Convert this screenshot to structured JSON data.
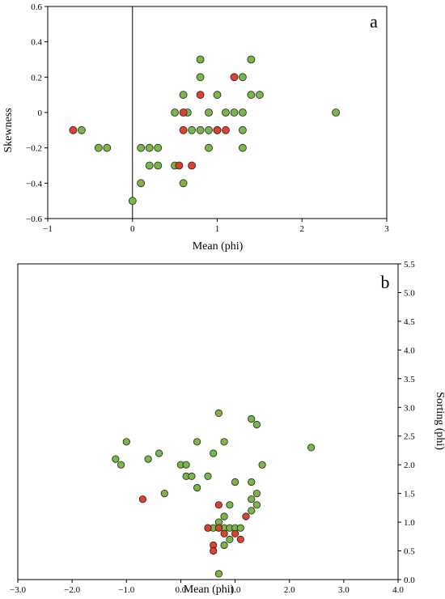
{
  "colors": {
    "green": "#7ab648",
    "red": "#e0412f",
    "stroke": "#1f1f1f"
  },
  "chart_data": [
    {
      "type": "scatter",
      "panel_label": "a",
      "xlabel": "Mean (phi)",
      "ylabel": "Skewness",
      "xlim": [
        -1,
        3
      ],
      "ylim": [
        -0.6,
        0.6
      ],
      "x_ticks": [
        -1,
        0,
        1,
        2,
        3
      ],
      "y_ticks": [
        -0.6,
        -0.4,
        -0.2,
        0,
        0.2,
        0.4,
        0.6
      ],
      "x_tick_labels": [
        "−1",
        "0",
        "1",
        "2",
        "3"
      ],
      "y_tick_labels": [
        "−0.6",
        "−0.4",
        "−0.2",
        "0",
        "0.2",
        "0.4",
        "0.6"
      ],
      "grid": false,
      "series": [
        {
          "color": "green",
          "points": [
            [
              -0.6,
              -0.1
            ],
            [
              -0.4,
              -0.2
            ],
            [
              -0.3,
              -0.2
            ],
            [
              0.0,
              -0.5
            ],
            [
              0.1,
              -0.4
            ],
            [
              0.1,
              -0.2
            ],
            [
              0.2,
              -0.2
            ],
            [
              0.2,
              -0.3
            ],
            [
              0.3,
              -0.2
            ],
            [
              0.3,
              -0.3
            ],
            [
              0.5,
              0.0
            ],
            [
              0.5,
              -0.3
            ],
            [
              0.6,
              0.1
            ],
            [
              0.6,
              -0.4
            ],
            [
              0.65,
              0.0
            ],
            [
              0.7,
              -0.1
            ],
            [
              0.8,
              0.3
            ],
            [
              0.8,
              0.2
            ],
            [
              0.8,
              -0.1
            ],
            [
              0.9,
              0.0
            ],
            [
              0.9,
              -0.1
            ],
            [
              0.9,
              -0.2
            ],
            [
              1.0,
              0.1
            ],
            [
              1.0,
              -0.1
            ],
            [
              1.1,
              0.0
            ],
            [
              1.2,
              0.0
            ],
            [
              1.3,
              0.2
            ],
            [
              1.3,
              0.0
            ],
            [
              1.3,
              -0.1
            ],
            [
              1.3,
              -0.2
            ],
            [
              1.4,
              0.3
            ],
            [
              1.4,
              0.1
            ],
            [
              1.5,
              0.1
            ],
            [
              2.4,
              0.0
            ]
          ]
        },
        {
          "color": "red",
          "points": [
            [
              -0.7,
              -0.1
            ],
            [
              0.55,
              -0.3
            ],
            [
              0.6,
              0.0
            ],
            [
              0.6,
              -0.1
            ],
            [
              0.7,
              -0.3
            ],
            [
              0.8,
              0.1
            ],
            [
              1.0,
              -0.1
            ],
            [
              1.1,
              -0.1
            ],
            [
              1.2,
              0.2
            ]
          ]
        }
      ]
    },
    {
      "type": "scatter",
      "panel_label": "b",
      "xlabel": "Mean (phi)",
      "ylabel": "Sorting (phi)",
      "xlim": [
        -3.0,
        4.0
      ],
      "ylim": [
        0.0,
        5.5
      ],
      "x_ticks": [
        -3,
        -2,
        -1,
        0,
        1,
        2,
        3,
        4
      ],
      "y_ticks": [
        0,
        0.5,
        1,
        1.5,
        2,
        2.5,
        3,
        3.5,
        4,
        4.5,
        5,
        5.5
      ],
      "x_tick_labels": [
        "−3.0",
        "−2.0",
        "−1.0",
        "0.0",
        "1.0",
        "2.0",
        "3.0",
        "4.0"
      ],
      "y_tick_labels": [
        "0.0",
        "0.5",
        "1.0",
        "1.5",
        "2.0",
        "2.5",
        "3.0",
        "3.5",
        "4.0",
        "4.5",
        "5.0",
        "5.5"
      ],
      "y_axis_side": "right",
      "grid": false,
      "series": [
        {
          "color": "green",
          "points": [
            [
              -1.2,
              2.1
            ],
            [
              -1.1,
              2.0
            ],
            [
              -1.0,
              2.4
            ],
            [
              -0.6,
              2.1
            ],
            [
              -0.4,
              2.2
            ],
            [
              -0.3,
              1.5
            ],
            [
              0.0,
              2.0
            ],
            [
              0.1,
              2.0
            ],
            [
              0.1,
              1.8
            ],
            [
              0.2,
              1.8
            ],
            [
              0.3,
              1.6
            ],
            [
              0.3,
              2.4
            ],
            [
              0.5,
              1.8
            ],
            [
              0.5,
              0.9
            ],
            [
              0.6,
              2.2
            ],
            [
              0.6,
              0.9
            ],
            [
              0.7,
              2.9
            ],
            [
              0.7,
              1.0
            ],
            [
              0.7,
              0.9
            ],
            [
              0.7,
              0.1
            ],
            [
              0.8,
              2.4
            ],
            [
              0.8,
              1.1
            ],
            [
              0.8,
              0.9
            ],
            [
              0.8,
              0.6
            ],
            [
              0.9,
              1.3
            ],
            [
              0.9,
              0.9
            ],
            [
              0.9,
              0.7
            ],
            [
              1.0,
              1.7
            ],
            [
              1.0,
              0.9
            ],
            [
              1.1,
              0.9
            ],
            [
              1.3,
              2.8
            ],
            [
              1.3,
              1.7
            ],
            [
              1.3,
              1.4
            ],
            [
              1.3,
              1.2
            ],
            [
              1.4,
              2.7
            ],
            [
              1.4,
              1.5
            ],
            [
              1.4,
              1.3
            ],
            [
              1.5,
              2.0
            ],
            [
              2.4,
              2.3
            ]
          ]
        },
        {
          "color": "red",
          "points": [
            [
              -0.7,
              1.4
            ],
            [
              0.5,
              0.9
            ],
            [
              0.6,
              0.6
            ],
            [
              0.6,
              0.5
            ],
            [
              0.7,
              1.3
            ],
            [
              0.7,
              0.9
            ],
            [
              0.8,
              0.8
            ],
            [
              1.0,
              0.8
            ],
            [
              1.1,
              0.7
            ],
            [
              1.2,
              1.1
            ]
          ]
        }
      ]
    }
  ]
}
